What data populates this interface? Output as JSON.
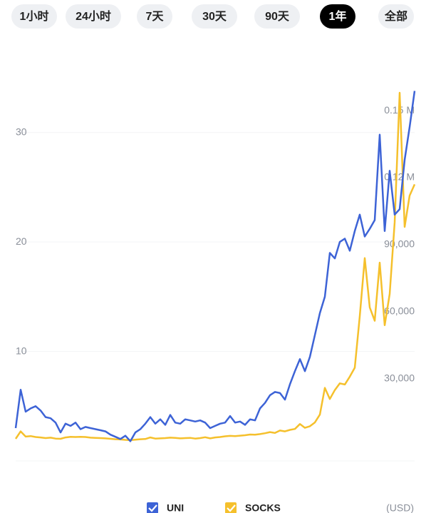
{
  "tabs": {
    "items": [
      "1小时",
      "24小时",
      "7天",
      "30天",
      "90天",
      "1年",
      "全部"
    ],
    "selected": 5
  },
  "chart_data": {
    "type": "line",
    "categories": [
      null,
      null,
      null,
      null,
      null,
      null,
      null,
      null,
      null,
      null,
      null,
      null,
      null,
      null,
      null,
      null,
      null,
      null,
      null,
      null,
      null,
      null,
      null,
      null,
      null,
      null,
      null,
      null,
      null,
      null,
      null,
      null,
      null,
      null,
      null,
      null,
      null,
      null,
      null,
      null,
      null,
      null,
      null,
      null,
      null,
      null,
      null,
      null,
      null,
      null,
      null,
      null,
      null,
      null,
      null,
      null,
      null,
      null,
      null,
      null,
      null,
      null,
      null,
      null,
      null,
      null,
      null,
      null,
      null,
      null,
      null,
      null,
      null,
      null,
      null,
      null,
      null,
      null,
      null,
      null,
      null
    ],
    "series": [
      {
        "name": "UNI",
        "color": "#3d63d6",
        "values": [
          3.0,
          6.5,
          4.5,
          4.8,
          5.0,
          4.6,
          4.0,
          3.9,
          3.5,
          2.6,
          3.4,
          3.2,
          3.5,
          2.9,
          3.1,
          3.0,
          2.9,
          2.8,
          2.7,
          2.4,
          2.2,
          2.0,
          2.3,
          1.8,
          2.6,
          2.9,
          3.4,
          4.0,
          3.4,
          3.8,
          3.3,
          4.2,
          3.5,
          3.4,
          3.8,
          3.7,
          3.6,
          3.7,
          3.5,
          3.0,
          3.2,
          3.4,
          3.5,
          4.1,
          3.5,
          3.6,
          3.3,
          3.8,
          3.7,
          4.8,
          5.3,
          6.0,
          6.3,
          6.2,
          5.6,
          7.0,
          8.2,
          9.3,
          8.2,
          9.5,
          11.5,
          13.5,
          15.0,
          19.0,
          18.5,
          20.0,
          20.3,
          19.2,
          21.0,
          22.5,
          20.5,
          21.2,
          22.0,
          29.8,
          21.0,
          26.5,
          22.5,
          23.0,
          27.5,
          30.5,
          33.8
        ]
      },
      {
        "name": "SOCKS",
        "color": "#f5c02c",
        "axis": "y2",
        "values": [
          3200,
          6500,
          4200,
          4400,
          4000,
          3800,
          3500,
          3700,
          3300,
          3200,
          3800,
          4100,
          4000,
          4100,
          4000,
          3700,
          3600,
          3500,
          3400,
          3200,
          3000,
          2900,
          2700,
          2600,
          2800,
          3000,
          3100,
          3800,
          3300,
          3400,
          3500,
          3700,
          3600,
          3400,
          3500,
          3600,
          3300,
          3500,
          3900,
          3400,
          3800,
          4000,
          4300,
          4500,
          4400,
          4600,
          4800,
          5100,
          5000,
          5300,
          5700,
          6200,
          5800,
          6900,
          6500,
          7200,
          7600,
          9800,
          8100,
          8800,
          10500,
          14000,
          26000,
          21000,
          25000,
          28000,
          27500,
          31000,
          35000,
          58000,
          84000,
          62000,
          56000,
          82000,
          54000,
          68000,
          100000,
          158000,
          98000,
          112000,
          117000
        ]
      }
    ],
    "ylim": [
      0,
      35
    ],
    "yticks": [
      10,
      20,
      30
    ],
    "y2lim": [
      -6700,
      164700
    ],
    "y2ticks": [
      {
        "value": 30000,
        "label": "30,000"
      },
      {
        "value": 60000,
        "label": "60,000"
      },
      {
        "value": 90000,
        "label": "90,000"
      },
      {
        "value": 120000,
        "label": "0.12 M"
      },
      {
        "value": 150000,
        "label": "0.15 M"
      }
    ],
    "grid": true,
    "currency_label": "(USD)"
  }
}
